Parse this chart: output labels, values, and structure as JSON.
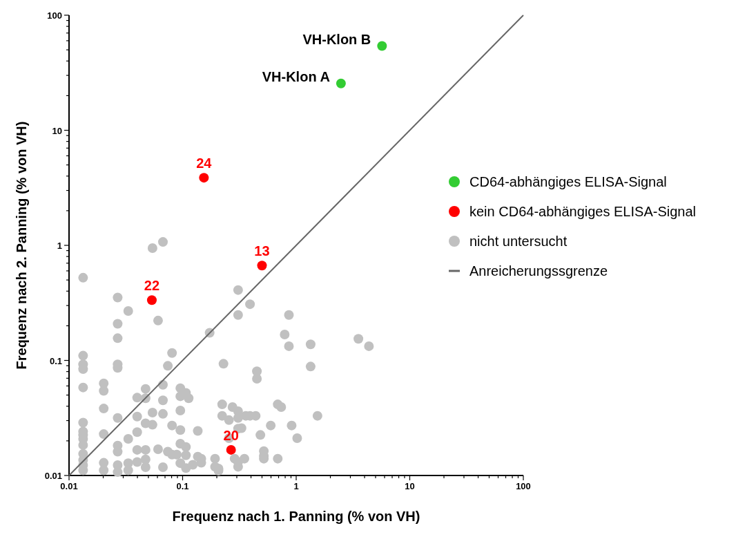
{
  "chart_data": {
    "type": "scatter",
    "xlabel": "Frequenz nach 1. Panning (% von VH)",
    "ylabel": "Frequenz nach 2. Panning (% von VH)",
    "log": "xy",
    "xlim": [
      0.01,
      100
    ],
    "ylim": [
      0.01,
      100
    ],
    "xticks": [
      0.01,
      {
        "value": 0.02,
        "label": null
      },
      {
        "value": 0.03,
        "label": null
      },
      {
        "value": 0.04,
        "label": null
      },
      {
        "value": 0.05,
        "label": null
      },
      {
        "value": 0.06,
        "label": null
      },
      {
        "value": 0.07,
        "label": null
      },
      {
        "value": 0.08,
        "label": null
      },
      {
        "value": 0.09,
        "label": null
      },
      0.1,
      {
        "value": 0.2,
        "label": null
      },
      {
        "value": 0.3,
        "label": null
      },
      {
        "value": 0.4,
        "label": null
      },
      {
        "value": 0.5,
        "label": null
      },
      {
        "value": 0.6,
        "label": null
      },
      {
        "value": 0.7,
        "label": null
      },
      {
        "value": 0.8,
        "label": null
      },
      {
        "value": 0.9,
        "label": null
      },
      1,
      {
        "value": 2,
        "label": null
      },
      {
        "value": 3,
        "label": null
      },
      {
        "value": 4,
        "label": null
      },
      {
        "value": 5,
        "label": null
      },
      {
        "value": 6,
        "label": null
      },
      {
        "value": 7,
        "label": null
      },
      {
        "value": 8,
        "label": null
      },
      {
        "value": 9,
        "label": null
      },
      10,
      {
        "value": 20,
        "label": null
      },
      {
        "value": 30,
        "label": null
      },
      {
        "value": 40,
        "label": null
      },
      {
        "value": 50,
        "label": null
      },
      {
        "value": 60,
        "label": null
      },
      {
        "value": 70,
        "label": null
      },
      {
        "value": 80,
        "label": null
      },
      {
        "value": 90,
        "label": null
      },
      100
    ],
    "yticks": [
      0.01,
      {
        "value": 0.02,
        "label": null
      },
      {
        "value": 0.03,
        "label": null
      },
      {
        "value": 0.04,
        "label": null
      },
      {
        "value": 0.05,
        "label": null
      },
      {
        "value": 0.06,
        "label": null
      },
      {
        "value": 0.07,
        "label": null
      },
      {
        "value": 0.08,
        "label": null
      },
      {
        "value": 0.09,
        "label": null
      },
      0.1,
      {
        "value": 0.2,
        "label": null
      },
      {
        "value": 0.3,
        "label": null
      },
      {
        "value": 0.4,
        "label": null
      },
      {
        "value": 0.5,
        "label": null
      },
      {
        "value": 0.6,
        "label": null
      },
      {
        "value": 0.7,
        "label": null
      },
      {
        "value": 0.8,
        "label": null
      },
      {
        "value": 0.9,
        "label": null
      },
      1,
      {
        "value": 2,
        "label": null
      },
      {
        "value": 3,
        "label": null
      },
      {
        "value": 4,
        "label": null
      },
      {
        "value": 5,
        "label": null
      },
      {
        "value": 6,
        "label": null
      },
      {
        "value": 7,
        "label": null
      },
      {
        "value": 8,
        "label": null
      },
      {
        "value": 9,
        "label": null
      },
      10,
      {
        "value": 20,
        "label": null
      },
      {
        "value": 30,
        "label": null
      },
      {
        "value": 40,
        "label": null
      },
      {
        "value": 50,
        "label": null
      },
      {
        "value": 60,
        "label": null
      },
      {
        "value": 70,
        "label": null
      },
      {
        "value": 80,
        "label": null
      },
      {
        "value": 90,
        "label": null
      },
      100
    ],
    "grid": false,
    "legend": "right",
    "series": [
      {
        "name": "CD64-abhängiges ELISA-Signal",
        "color": "#33cc33",
        "marker": "circle",
        "x": [
          5.7,
          2.48
        ],
        "values": [
          54,
          25.5
        ]
      },
      {
        "name": "kein CD64-abhängiges ELISA-Signal",
        "color": "#ff0000",
        "marker": "circle",
        "x": [
          0.154,
          0.5,
          0.0536,
          0.267
        ],
        "values": [
          3.87,
          0.667,
          0.334,
          0.0167
        ]
      },
      {
        "name": "nicht untersucht",
        "color": "#c0c0c0",
        "marker": "circle",
        "x": [
          0.0133,
          0.0133,
          0.0133,
          0.0133,
          0.0133,
          0.0133,
          0.0133,
          0.0133,
          0.0133,
          0.0133,
          0.0133,
          0.0133,
          0.0133,
          0.0133,
          0.0202,
          0.0202,
          0.0202,
          0.0202,
          0.0202,
          0.0202,
          0.0268,
          0.0268,
          0.0268,
          0.0268,
          0.0268,
          0.0268,
          0.0268,
          0.0268,
          0.0268,
          0.0268,
          0.0332,
          0.0332,
          0.0332,
          0.0332,
          0.0398,
          0.0398,
          0.0398,
          0.0398,
          0.0398,
          0.0472,
          0.0472,
          0.0472,
          0.0472,
          0.0472,
          0.0472,
          0.0543,
          0.0543,
          0.0543,
          0.0608,
          0.0608,
          0.0671,
          0.0671,
          0.0671,
          0.0671,
          0.0671,
          0.0741,
          0.0741,
          0.0807,
          0.0807,
          0.0807,
          0.0889,
          0.0955,
          0.0955,
          0.0955,
          0.0955,
          0.0955,
          0.0955,
          0.107,
          0.107,
          0.107,
          0.107,
          0.113,
          0.123,
          0.136,
          0.136,
          0.146,
          0.146,
          0.173,
          0.193,
          0.193,
          0.207,
          0.207,
          0.223,
          0.223,
          0.229,
          0.256,
          0.256,
          0.275,
          0.287,
          0.308,
          0.308,
          0.308,
          0.308,
          0.308,
          0.308,
          0.308,
          0.33,
          0.35,
          0.36,
          0.392,
          0.392,
          0.44,
          0.451,
          0.451,
          0.484,
          0.519,
          0.519,
          0.519,
          0.597,
          0.688,
          0.688,
          0.738,
          0.792,
          0.863,
          0.863,
          0.912,
          1.02,
          1.34,
          1.34,
          1.54,
          3.53,
          4.37
        ],
        "values": [
          0.523,
          0.11,
          0.0923,
          0.084,
          0.0582,
          0.0288,
          0.0241,
          0.0225,
          0.0208,
          0.0184,
          0.0154,
          0.0136,
          0.0123,
          0.0111,
          0.0631,
          0.0544,
          0.0382,
          0.0229,
          0.0129,
          0.0111,
          0.352,
          0.208,
          0.156,
          0.0923,
          0.0861,
          0.0316,
          0.0182,
          0.0161,
          0.0123,
          0.0107,
          0.269,
          0.0208,
          0.0128,
          0.0111,
          0.0475,
          0.0325,
          0.0238,
          0.0167,
          0.0131,
          0.0566,
          0.0469,
          0.0284,
          0.0167,
          0.0138,
          0.0118,
          0.946,
          0.0352,
          0.0276,
          0.222,
          0.0169,
          1.07,
          0.0614,
          0.045,
          0.0343,
          0.0118,
          0.0897,
          0.0161,
          0.116,
          0.0272,
          0.0152,
          0.0152,
          0.0574,
          0.0488,
          0.0367,
          0.0248,
          0.0189,
          0.0128,
          0.0522,
          0.0177,
          0.015,
          0.0116,
          0.0469,
          0.0124,
          0.0244,
          0.0146,
          0.014,
          0.0129,
          0.174,
          0.014,
          0.0119,
          0.011,
          0.0115,
          0.0415,
          0.033,
          0.0935,
          0.0303,
          0.0211,
          0.0393,
          0.014,
          0.409,
          0.248,
          0.0362,
          0.0316,
          0.0255,
          0.0131,
          0.0119,
          0.0258,
          0.014,
          0.033,
          0.308,
          0.033,
          0.033,
          0.0805,
          0.0693,
          0.0225,
          0.0163,
          0.0148,
          0.014,
          0.0272,
          0.0415,
          0.014,
          0.0393,
          0.168,
          0.248,
          0.133,
          0.0272,
          0.0211,
          0.138,
          0.0885,
          0.033,
          0.154,
          0.133
        ]
      },
      {
        "name": "Anreicherungssgrenze",
        "type": "line",
        "marker": "none",
        "color": "#666666",
        "x": [
          0.01,
          100
        ],
        "values": [
          0.01,
          100
        ]
      }
    ],
    "annotations": [
      {
        "text": "VH-Klon B",
        "x": 5.7,
        "y": 54
      },
      {
        "text": "VH-Klon A",
        "x": 2.48,
        "y": 25.5
      },
      {
        "text": "24",
        "x": 0.154,
        "y": 3.87
      },
      {
        "text": "13",
        "x": 0.5,
        "y": 0.667
      },
      {
        "text": "22",
        "x": 0.0536,
        "y": 0.334
      },
      {
        "text": "20",
        "x": 0.267,
        "y": 0.0167
      }
    ]
  }
}
